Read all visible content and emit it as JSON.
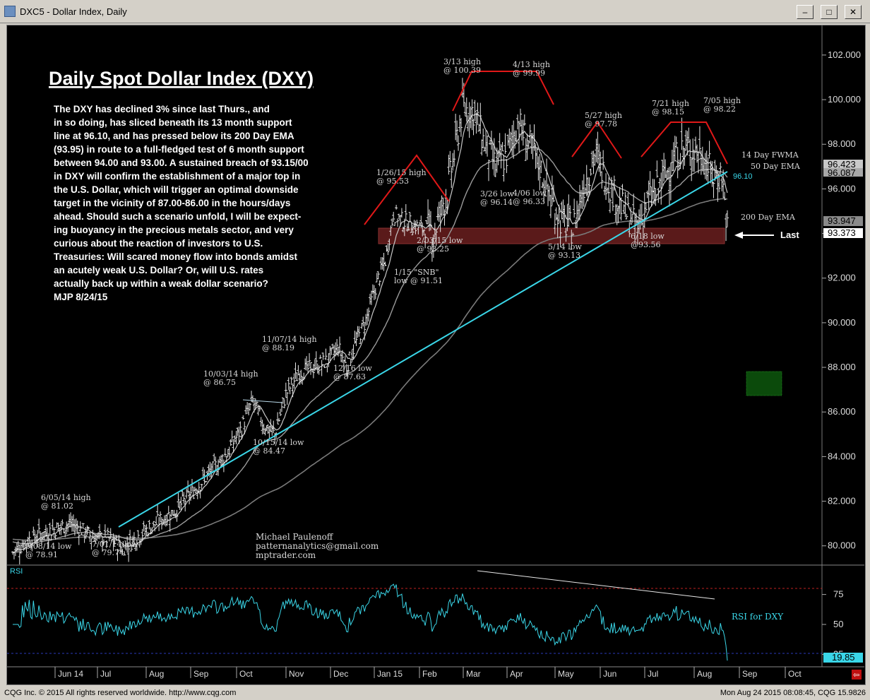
{
  "window": {
    "title": "DXC5 - Dollar Index, Daily",
    "min_label": "–",
    "max_label": "□",
    "close_label": "✕"
  },
  "footer": {
    "copyright": "CQG Inc. © 2015 All rights reserved worldwide. http://www.cqg.com",
    "timestamp": "Mon Aug 24 2015 08:08:45, CQG 15.9826"
  },
  "commentary": {
    "title": "Daily Spot Dollar Index (DXY)",
    "lines": [
      "The DXY has declined 3% since last Thurs., and",
      "in so doing, has sliced beneath its 13 month support",
      "line at 96.10, and has pressed below its  200 Day EMA",
      "(93.95) in route to a full-fledged test of 6 month support",
      "between 94.00 and 93.00. A sustained breach of 93.15/00",
      "in DXY will confirm the establishment of a major top in",
      "the U.S. Dollar, which will trigger an optimal downside",
      "target in the vicinity of 87.00-86.00 in the hours/days",
      "ahead. Should such a scenario unfold, I will be expect-",
      "ing buoyancy in the precious metals sector, and very",
      "curious about the reaction of investors to U.S.",
      "Treasuries: Will scared money flow into bonds amidst",
      "an acutely weak U.S.  Dollar? Or, will U.S. rates",
      "actually back up within a weak dollar scenario?",
      "MJP 8/24/15"
    ]
  },
  "credit": [
    "Michael Paulenoff",
    "patternanalytics@gmail.com",
    "mptrader.com"
  ],
  "labels": {
    "fwma": "14 Day FWMA",
    "ema50": "50 Day EMA",
    "ema200": "200 Day EMA",
    "support": "96.10",
    "last": "Last",
    "rsi_panel": "RSI",
    "rsi_for": "RSI for DXY"
  },
  "price_boxes": {
    "fwma_val": "96.423",
    "ema50_val": "96.087",
    "ema200_val": "93.947",
    "last_val": "93.373",
    "rsi_val": "19.85"
  },
  "chart_data": {
    "type": "bar",
    "title": "DXC5 - Dollar Index, Daily",
    "y_ticks": [
      "102.000",
      "100.000",
      "98.000",
      "96.000",
      "94.000",
      "92.000",
      "90.000",
      "88.000",
      "86.000",
      "84.000",
      "82.000",
      "80.000"
    ],
    "ylim": [
      79.2,
      103.2
    ],
    "x_ticks": [
      "Jun 14",
      "Jul",
      "Aug",
      "Sep",
      "Oct",
      "Nov",
      "Dec",
      "Jan 15",
      "Feb",
      "Mar",
      "Apr",
      "May",
      "Jun",
      "Jul",
      "Aug",
      "Sep",
      "Oct"
    ],
    "rsi_ticks": [
      "75",
      "50",
      "25"
    ],
    "rsi_range": [
      17,
      96
    ],
    "annotations": [
      {
        "text": [
          "6/05/14 high",
          "@ 81.02"
        ]
      },
      {
        "text": [
          "5/08/14 low",
          "@ 78.91"
        ]
      },
      {
        "text": [
          "7/01/14 low",
          "@ 79.74"
        ]
      },
      {
        "text": [
          "10/03/14 high",
          "@ 86.75"
        ]
      },
      {
        "text": [
          "10/15/14 low",
          "@ 84.47"
        ]
      },
      {
        "text": [
          "11/07/14 high",
          "@ 88.19"
        ]
      },
      {
        "text": [
          "12/16 low",
          "@ 87.63"
        ]
      },
      {
        "text": [
          "1/15 \"SNB\"",
          "low @ 91.51"
        ]
      },
      {
        "text": [
          "1/26/15 high",
          "@ 95.53"
        ]
      },
      {
        "text": [
          "2/03/15 low",
          "@ 93.25"
        ]
      },
      {
        "text": [
          "3/13 high",
          "@ 100.39"
        ]
      },
      {
        "text": [
          "4/13 high",
          "@ 99.99"
        ]
      },
      {
        "text": [
          "3/26 low",
          "@ 96.14"
        ]
      },
      {
        "text": [
          "4/06 low",
          "@ 96.33"
        ]
      },
      {
        "text": [
          "5/14 low",
          "@ 93.13"
        ]
      },
      {
        "text": [
          "5/27 high",
          "@ 97.78"
        ]
      },
      {
        "text": [
          "6/18 low",
          "@93.56"
        ]
      },
      {
        "text": [
          "7/21 high",
          "@ 98.15"
        ]
      },
      {
        "text": [
          "7/05 high",
          "@ 98.22"
        ]
      }
    ],
    "series": [
      {
        "name": "14 Day FWMA",
        "last": 96.423
      },
      {
        "name": "50 Day EMA",
        "last": 96.087
      },
      {
        "name": "200 Day EMA",
        "last": 93.947
      },
      {
        "name": "RSI for DXY",
        "last": 19.85
      }
    ],
    "price_path": [
      [
        0,
        79.7
      ],
      [
        12,
        80.3
      ],
      [
        28,
        80.7
      ],
      [
        42,
        81.0
      ],
      [
        58,
        80.4
      ],
      [
        70,
        80.3
      ],
      [
        80,
        79.9
      ],
      [
        92,
        80.5
      ],
      [
        106,
        81.1
      ],
      [
        118,
        81.6
      ],
      [
        130,
        82.4
      ],
      [
        142,
        83.2
      ],
      [
        156,
        84.2
      ],
      [
        166,
        85.3
      ],
      [
        174,
        86.5
      ],
      [
        182,
        85.4
      ],
      [
        190,
        85.0
      ],
      [
        198,
        86.8
      ],
      [
        208,
        87.8
      ],
      [
        218,
        88.0
      ],
      [
        228,
        88.3
      ],
      [
        236,
        88.9
      ],
      [
        242,
        88.0
      ],
      [
        248,
        89.0
      ],
      [
        256,
        90.1
      ],
      [
        264,
        91.8
      ],
      [
        270,
        92.8
      ],
      [
        276,
        94.9
      ],
      [
        282,
        94.6
      ],
      [
        290,
        94.4
      ],
      [
        298,
        94.2
      ],
      [
        306,
        94.1
      ],
      [
        316,
        96.2
      ],
      [
        326,
        99.6
      ],
      [
        334,
        99.5
      ],
      [
        342,
        98.0
      ],
      [
        350,
        97.0
      ],
      [
        358,
        97.5
      ],
      [
        366,
        99.0
      ],
      [
        374,
        98.0
      ],
      [
        382,
        97.0
      ],
      [
        390,
        95.5
      ],
      [
        398,
        94.5
      ],
      [
        406,
        94.2
      ],
      [
        414,
        96.2
      ],
      [
        422,
        97.5
      ],
      [
        430,
        96.5
      ],
      [
        438,
        95.5
      ],
      [
        446,
        94.8
      ],
      [
        452,
        94.2
      ],
      [
        460,
        95.4
      ],
      [
        468,
        96.0
      ],
      [
        476,
        97.0
      ],
      [
        484,
        97.7
      ],
      [
        492,
        97.8
      ],
      [
        500,
        97.5
      ],
      [
        508,
        96.5
      ],
      [
        514,
        96.7
      ],
      [
        518,
        94.2
      ]
    ]
  }
}
